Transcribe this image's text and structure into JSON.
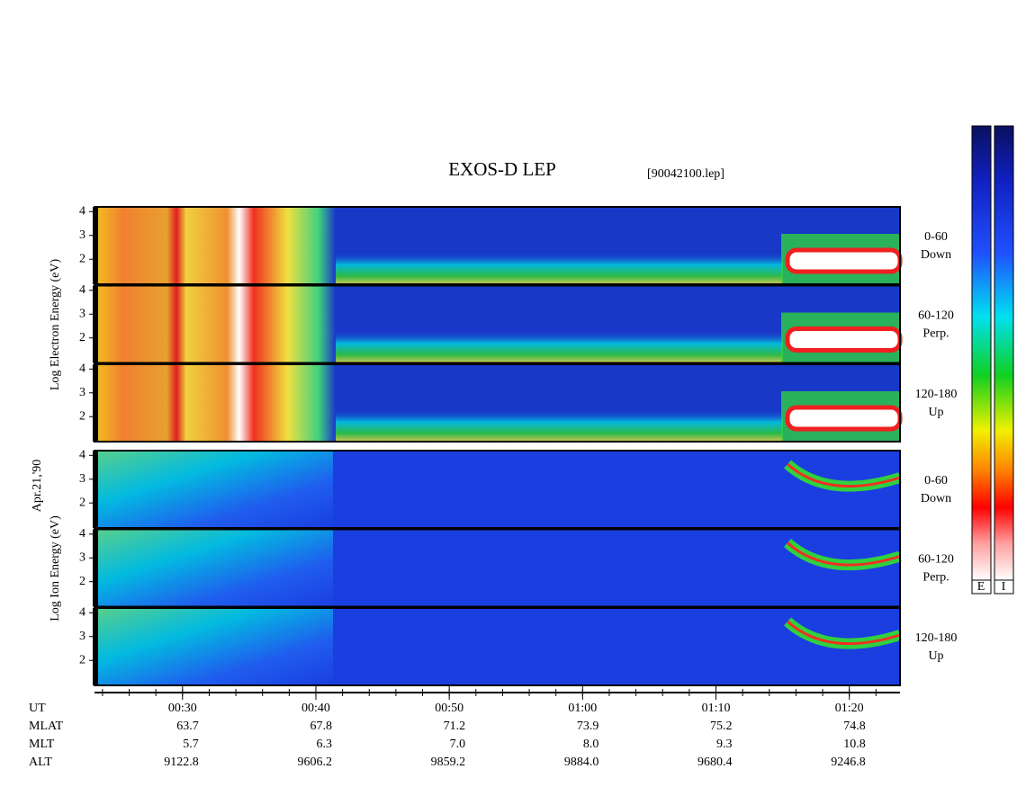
{
  "chart_data": {
    "type": "spectrogram",
    "title": "EXOS-D LEP",
    "subtitle": "[90042100.lep]",
    "date_label": "Apr.21,'90",
    "ylim": [
      0.95,
      4.2
    ],
    "yticks": [
      2,
      3,
      4
    ],
    "xlim": [
      23.4,
      83.8
    ],
    "xticks": [
      {
        "value": 30,
        "label": "00:30"
      },
      {
        "value": 40,
        "label": "00:40"
      },
      {
        "value": 50,
        "label": "00:50"
      },
      {
        "value": 60,
        "label": "01:00"
      },
      {
        "value": 70,
        "label": "01:10"
      },
      {
        "value": 80,
        "label": "01:20"
      }
    ],
    "x_label": "UT",
    "groups": [
      {
        "ylabel": "Log Electron Energy (eV)",
        "channels": [
          {
            "range": "0-60",
            "direction": "Down"
          },
          {
            "range": "60-120",
            "direction": "Perp."
          },
          {
            "range": "120-180",
            "direction": "Up"
          }
        ]
      },
      {
        "ylabel": "Log Ion Energy (eV)",
        "channels": [
          {
            "range": "0-60",
            "direction": "Down"
          },
          {
            "range": "60-120",
            "direction": "Perp."
          },
          {
            "range": "120-180",
            "direction": "Up"
          }
        ]
      }
    ],
    "ephemeris": [
      {
        "name": "MLAT",
        "values": [
          "63.7",
          "67.8",
          "71.2",
          "73.9",
          "75.2",
          "74.8"
        ]
      },
      {
        "name": "MLT",
        "values": [
          "5.7",
          "6.3",
          "7.0",
          "8.0",
          "9.3",
          "10.8"
        ]
      },
      {
        "name": "ALT",
        "values": [
          "9122.8",
          "9606.2",
          "9859.2",
          "9884.0",
          "9680.4",
          "9246.8"
        ]
      }
    ],
    "colorbar_labels": [
      "E",
      "I"
    ]
  }
}
